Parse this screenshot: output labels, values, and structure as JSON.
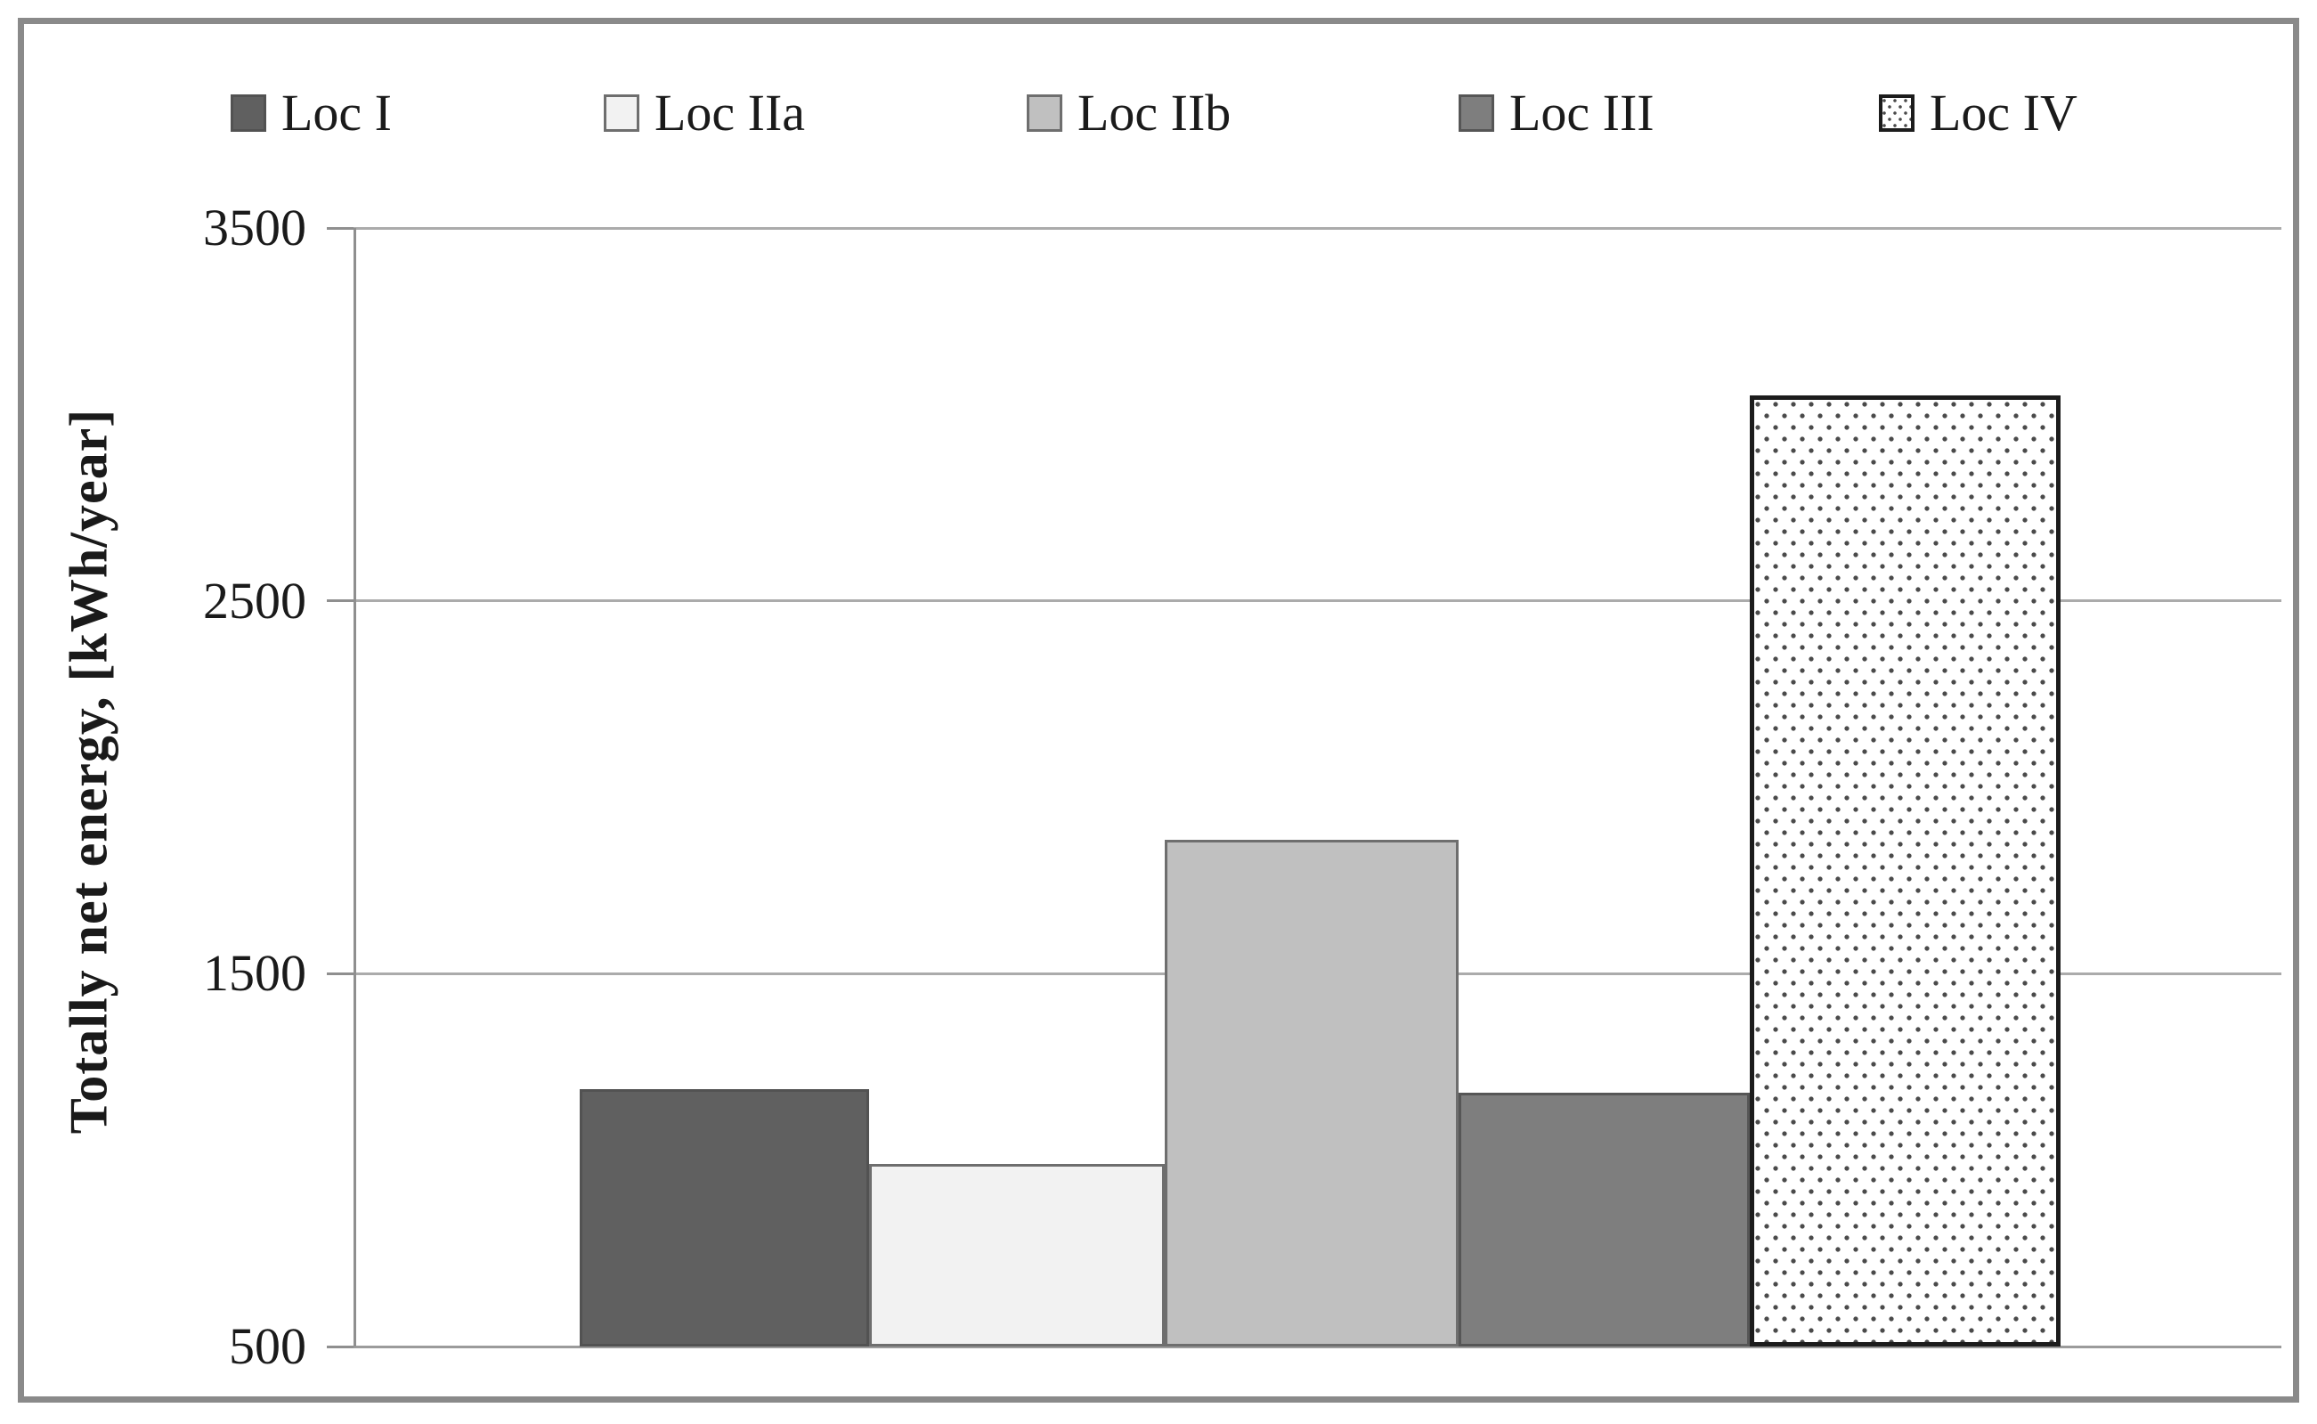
{
  "y_axis": {
    "title": "Totally net energy, [kWh/year]",
    "ticks": [
      "3500",
      "2500",
      "1500",
      "500"
    ]
  },
  "chart_data": {
    "type": "bar",
    "title": "",
    "xlabel": "",
    "ylabel": "Totally net energy, [kWh/year]",
    "ylim": [
      500,
      3500
    ],
    "ytick_values": [
      3500,
      2500,
      1500,
      500
    ],
    "grid": true,
    "legend_position": "top",
    "categories": [
      "Totally net energy"
    ],
    "series": [
      {
        "name": "Loc I",
        "value": 1190,
        "fill": "#606060",
        "border": "#525252",
        "pattern": "solid"
      },
      {
        "name": "Loc IIa",
        "value": 990,
        "fill": "#f2f2f2",
        "border": "#6e6e6e",
        "pattern": "solid"
      },
      {
        "name": "Loc IIb",
        "value": 1860,
        "fill": "#c0c0c0",
        "border": "#6e6e6e",
        "pattern": "solid"
      },
      {
        "name": "Loc III",
        "value": 1180,
        "fill": "#7e7e7e",
        "border": "#565656",
        "pattern": "solid"
      },
      {
        "name": "Loc IV",
        "value": 3050,
        "fill": "#ffffff",
        "border": "#1c1c1c",
        "pattern": "dots",
        "dot_color": "#4a4a4a"
      }
    ]
  },
  "colors": {
    "frame": "#8a8a8a",
    "gridline": "#ababab",
    "axis_line": "#8f8f8f",
    "text": "#1a1a1a",
    "background": "#ffffff"
  }
}
